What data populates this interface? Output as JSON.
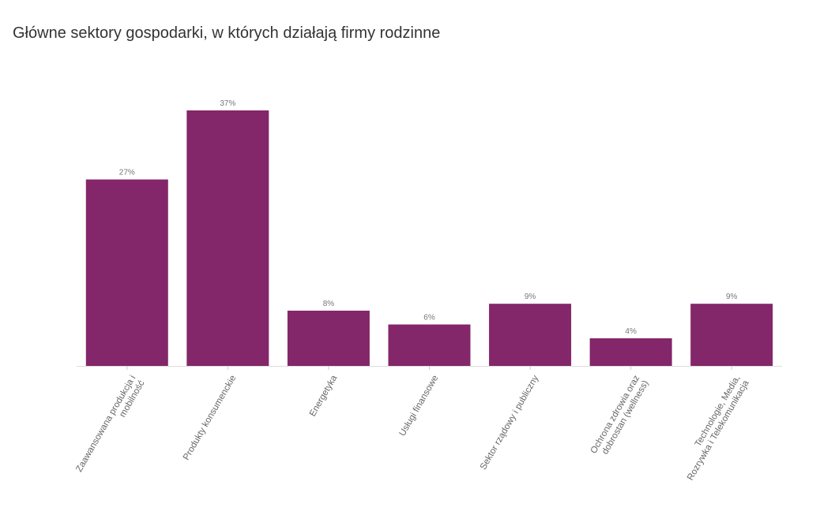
{
  "chart_data": {
    "type": "bar",
    "title": "Główne sektory gospodarki, w których działają firmy rodzinne",
    "categories": [
      "Zaawansowana produkcja i mobilność",
      "Produkty konsumenckie",
      "Energetyka",
      "Usługi finansowe",
      "Sektor rządowy i publiczny",
      "Ochrona zdrowia oraz dobrostan (wellness)",
      "Technologie, Media, Rozrywka i Telekomunikacja"
    ],
    "values": [
      27,
      37,
      8,
      6,
      9,
      4,
      9
    ],
    "value_labels": [
      "27%",
      "37%",
      "8%",
      "6%",
      "9%",
      "4%",
      "9%"
    ],
    "color": "#84266a"
  }
}
